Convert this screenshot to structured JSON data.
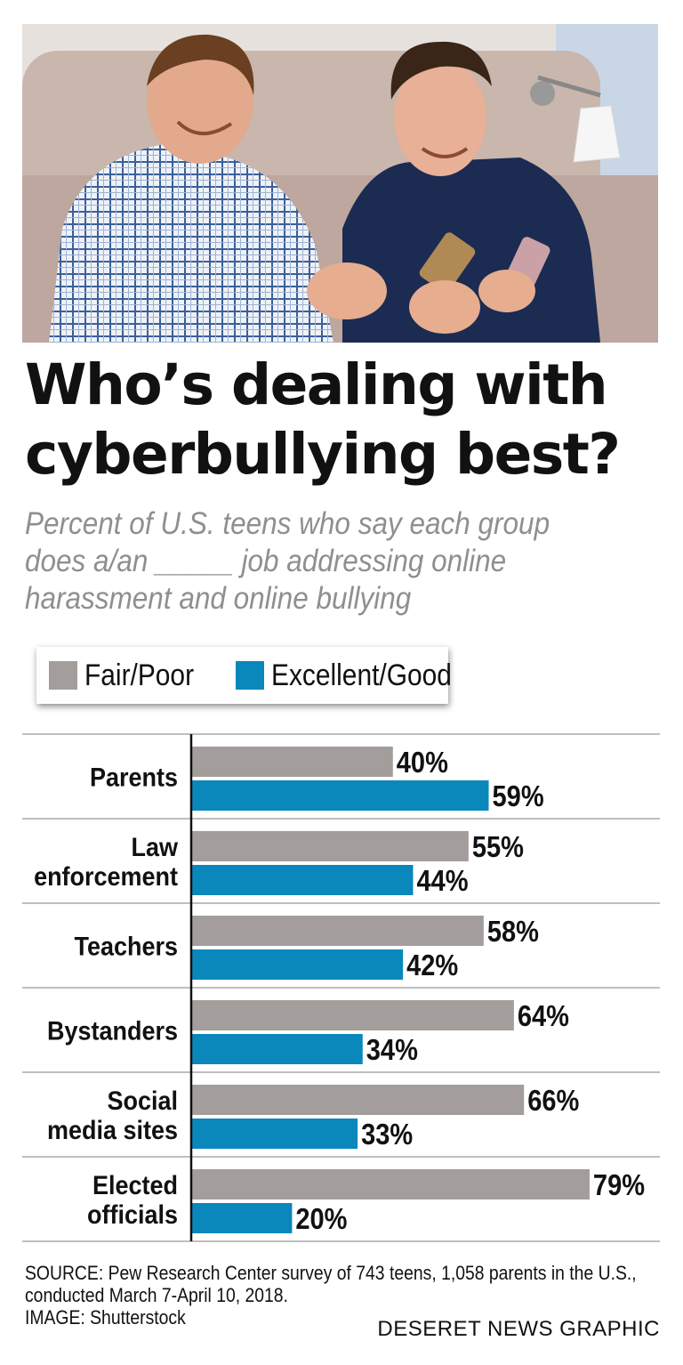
{
  "headline": {
    "line1": "Who’s dealing with",
    "line2": "cyberbullying best?"
  },
  "subtitle": {
    "line1": "Percent of U.S. teens who say each group",
    "line2": "does a/an _____ job addressing online",
    "line3": "harassment and online bullying"
  },
  "legend": {
    "fair_poor": "Fair/Poor",
    "excellent_good": "Excellent/Good"
  },
  "colors": {
    "fair_poor": "#a39e9b",
    "excellent_good": "#0a87bb"
  },
  "chart_data": {
    "type": "bar",
    "orientation": "horizontal",
    "categories": [
      [
        "Parents"
      ],
      [
        "Law",
        "enforcement"
      ],
      [
        "Teachers"
      ],
      [
        "Bystanders"
      ],
      [
        "Social",
        "media sites"
      ],
      [
        "Elected",
        "officials"
      ]
    ],
    "series": [
      {
        "name": "Fair/Poor",
        "values": [
          40,
          55,
          58,
          64,
          66,
          79
        ],
        "labels": [
          "40%",
          "55%",
          "58%",
          "64%",
          "66%",
          "79%"
        ]
      },
      {
        "name": "Excellent/Good",
        "values": [
          59,
          44,
          42,
          34,
          33,
          20
        ],
        "labels": [
          "59%",
          "44%",
          "42%",
          "34%",
          "33%",
          "20%"
        ]
      }
    ],
    "xlim": [
      0,
      100
    ],
    "legend_position": "top-left"
  },
  "footer": {
    "source_line1": "SOURCE: Pew Research Center survey of 743 teens, 1,058 parents in the U.S.,",
    "source_line2": "conducted March 7-April 10, 2018.",
    "image_credit": "IMAGE: Shutterstock",
    "graphic_credit": "DESERET NEWS GRAPHIC"
  }
}
